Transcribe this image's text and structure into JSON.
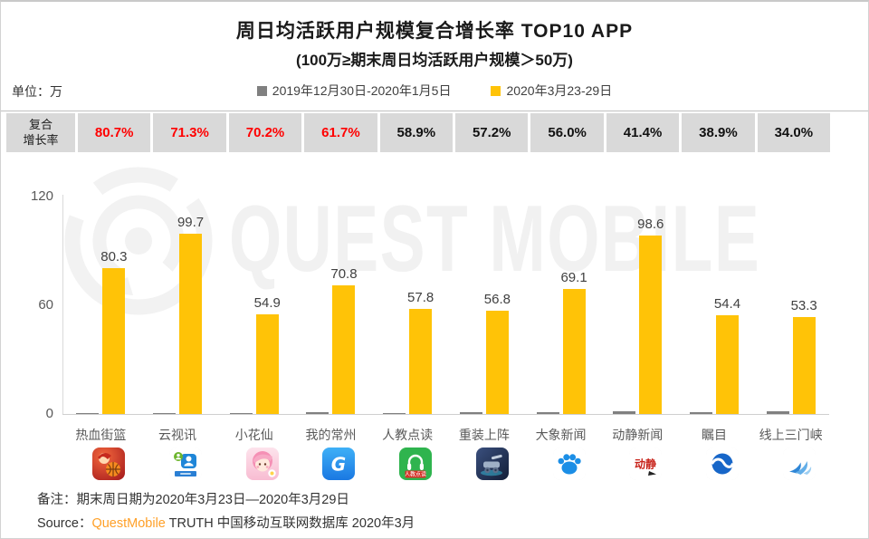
{
  "title": "周日均活跃用户规模复合增长率 TOP10 APP",
  "subtitle": "(100万≥期末周日均活跃用户规模＞50万)",
  "unit_label": "单位：万",
  "watermark": "QUEST MOBILE",
  "legend": [
    {
      "label": "2019年12月30日-2020年1月5日",
      "color": "#808080"
    },
    {
      "label": "2020年3月23-29日",
      "color": "#FFC307"
    }
  ],
  "growth_rate_row": {
    "label": "复合\n增长率"
  },
  "chart_data": {
    "type": "bar",
    "title": "周日均活跃用户规模复合增长率 TOP10 APP",
    "subtitle": "(100万≥期末周日均活跃用户规模＞50万)",
    "ylabel": "单位：万",
    "ylim": [
      0,
      120
    ],
    "yticks": [
      0,
      60,
      120
    ],
    "grid": false,
    "legend_position": "top",
    "categories": [
      "热血街篮",
      "云视讯",
      "小花仙",
      "我的常州",
      "人教点读",
      "重装上阵",
      "大象新闻",
      "动静新闻",
      "瞩目",
      "线上三门峡"
    ],
    "series": [
      {
        "name": "2019年12月30日-2020年1月5日",
        "color": "#808080",
        "values": [
          0.7,
          0.7,
          0.6,
          0.8,
          0.7,
          0.8,
          0.9,
          1.6,
          1.2,
          1.6
        ]
      },
      {
        "name": "2020年3月23-29日",
        "color": "#FFC307",
        "values": [
          80.3,
          99.7,
          54.9,
          70.8,
          57.8,
          56.8,
          69.1,
          98.6,
          54.4,
          53.3
        ]
      }
    ],
    "compound_growth_rates": [
      "80.7%",
      "71.3%",
      "70.2%",
      "61.7%",
      "58.9%",
      "57.2%",
      "56.0%",
      "41.4%",
      "38.9%",
      "34.0%"
    ],
    "rate_red_count": 4,
    "rate_red_color": "#FF0000"
  },
  "apps": [
    {
      "name": "热血街篮",
      "slug": "rexue-jielan",
      "icon": "basketball-game-icon"
    },
    {
      "name": "云视讯",
      "slug": "yun-shixun",
      "icon": "video-conference-icon"
    },
    {
      "name": "小花仙",
      "slug": "xiao-hua-xian",
      "icon": "anime-girl-icon"
    },
    {
      "name": "我的常州",
      "slug": "wode-changzhou",
      "icon": "blue-g-city-icon"
    },
    {
      "name": "人教点读",
      "slug": "renjiao-diandu",
      "icon": "headphones-reading-icon"
    },
    {
      "name": "重装上阵",
      "slug": "chongzhuang-shangzhen",
      "icon": "mech-game-icon"
    },
    {
      "name": "大象新闻",
      "slug": "daxiang-xinwen",
      "icon": "blue-paw-news-icon"
    },
    {
      "name": "动静新闻",
      "slug": "dongjing-xinwen",
      "icon": "red-calligraphy-news-icon"
    },
    {
      "name": "瞩目",
      "slug": "zhumu",
      "icon": "blue-circle-wave-icon"
    },
    {
      "name": "线上三门峡",
      "slug": "xianshang-sanmenxia",
      "icon": "blue-swoosh-wave-icon"
    }
  ],
  "footer": {
    "note": "备注：期末周日期为2020年3月23日—2020年3月29日",
    "source_prefix": "Source：",
    "source_brand": "QuestMobile",
    "source_suffix": " TRUTH 中国移动互联网数据库 2020年3月"
  }
}
